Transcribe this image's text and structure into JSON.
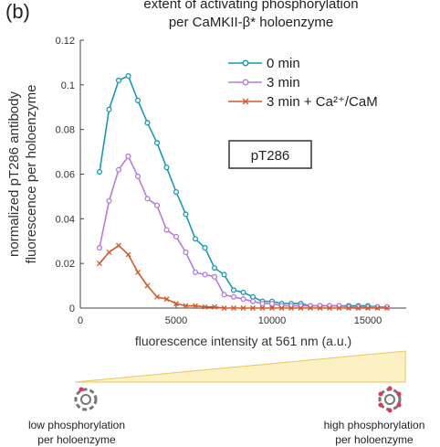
{
  "panel_label": "(b)",
  "chart_data": {
    "type": "line",
    "title": [
      "extent of activating phosphorylation",
      "per CaMKII-β* holoenzyme"
    ],
    "xlabel": "fluorescence intensity at 561 nm (a.u.)",
    "ylabel": [
      "normalized pT286 antibody",
      "fluorescence per holoenzyme"
    ],
    "xlim": [
      0,
      17000
    ],
    "ylim": [
      0,
      0.12
    ],
    "xticks": [
      0,
      5000,
      10000,
      15000
    ],
    "xtick_labels": [
      "0",
      "5000",
      "10000",
      "15000"
    ],
    "yticks": [
      0,
      0.02,
      0.04,
      0.06,
      0.08,
      0.1,
      0.12
    ],
    "ytick_labels": [
      "0",
      "0.02",
      "0.04",
      "0.06",
      "0.08",
      "0.1",
      "0.12"
    ],
    "grid": false,
    "legend_position": "top-right",
    "annotation": "pT286",
    "series": [
      {
        "name": "0 min",
        "color": "#1a9ab0",
        "marker": "circle",
        "x": [
          1000,
          1500,
          2000,
          2500,
          3000,
          3500,
          4000,
          4500,
          5000,
          5500,
          6000,
          6500,
          7000,
          7500,
          8000,
          8500,
          9000,
          9500,
          10000,
          10500,
          11000,
          11500,
          12000,
          12500,
          13000,
          13500,
          14000,
          14500,
          15000,
          15500,
          16000
        ],
        "y": [
          0.061,
          0.089,
          0.102,
          0.104,
          0.093,
          0.083,
          0.074,
          0.063,
          0.052,
          0.042,
          0.031,
          0.027,
          0.018,
          0.015,
          0.008,
          0.007,
          0.005,
          0.003,
          0.003,
          0.002,
          0.002,
          0.002,
          0.001,
          0.001,
          0.001,
          0.001,
          0.001,
          0.001,
          0.001,
          0.0005,
          0.0005
        ]
      },
      {
        "name": "3 min",
        "color": "#b57be0",
        "marker": "circle",
        "x": [
          1000,
          1500,
          2000,
          2500,
          3000,
          3500,
          4000,
          4500,
          5000,
          5500,
          6000,
          6500,
          7000,
          7500,
          8000,
          8500,
          9000,
          9500,
          10000,
          10500,
          11000,
          11500,
          12000,
          12500,
          13000,
          13500,
          14000,
          14500,
          15000,
          15500,
          16000
        ],
        "y": [
          0.027,
          0.048,
          0.062,
          0.068,
          0.059,
          0.049,
          0.046,
          0.035,
          0.032,
          0.025,
          0.016,
          0.015,
          0.014,
          0.006,
          0.005,
          0.004,
          0.003,
          0.002,
          0.002,
          0.001,
          0.001,
          0.001,
          0.001,
          0.001,
          0.001,
          0.001,
          0.0005,
          0.0005,
          0.0005,
          0.0005,
          0.0005
        ]
      },
      {
        "name": "3 min + Ca²⁺/CaM",
        "color": "#d35a2a",
        "marker": "x",
        "x": [
          1000,
          1500,
          2000,
          2500,
          3000,
          3500,
          4000,
          4500,
          5000,
          5500,
          6000,
          6500,
          7000,
          7500,
          8000,
          8500,
          9000,
          9500,
          10000,
          10500,
          11000,
          11500,
          12000,
          12500,
          13000,
          13500,
          14000,
          14500,
          15000,
          15500,
          16000
        ],
        "y": [
          0.02,
          0.025,
          0.028,
          0.024,
          0.016,
          0.01,
          0.005,
          0.004,
          0.002,
          0.001,
          0.001,
          0.0005,
          0.0005,
          0,
          0,
          0,
          0,
          0,
          0,
          0,
          0,
          0,
          0,
          0,
          0,
          0,
          0,
          0,
          0,
          0,
          0
        ]
      }
    ]
  },
  "gradient": {
    "colors": {
      "fill": "#fbf1c2",
      "stroke": "#e8c85a"
    },
    "icon_low": "holoenzyme-low-phosphorylation-icon",
    "icon_high": "holoenzyme-high-phosphorylation-icon",
    "caption_low": [
      "low phosphorylation",
      "per holoenzyme"
    ],
    "caption_high": [
      "high phosphorylation",
      "per holoenzyme"
    ]
  }
}
